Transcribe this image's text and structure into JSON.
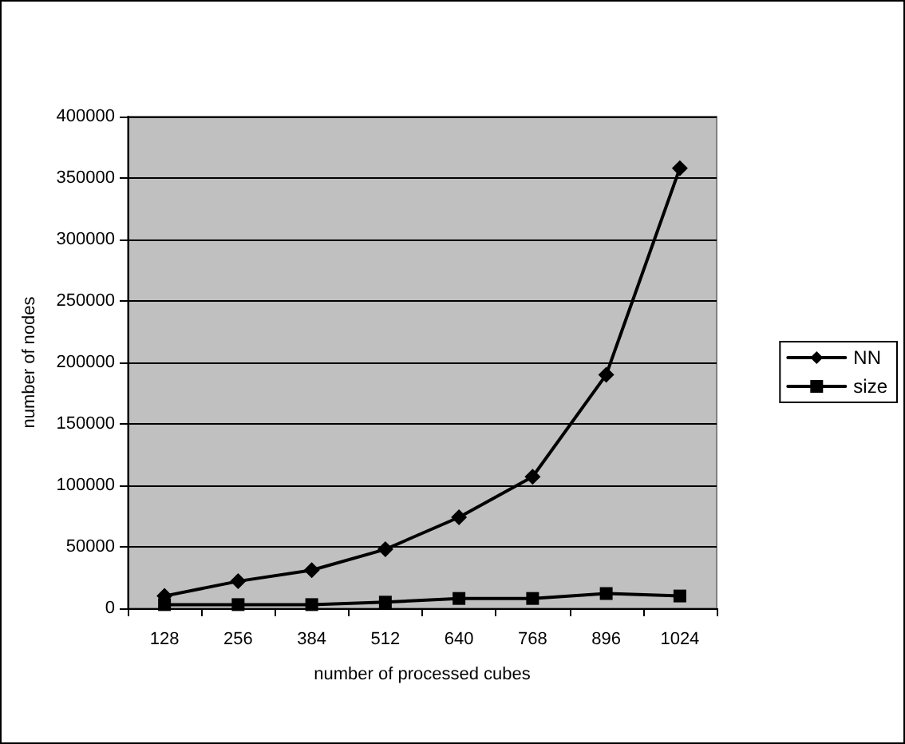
{
  "chart_data": {
    "type": "line",
    "xlabel": "number of processed cubes",
    "ylabel": "number of nodes",
    "categories": [
      "128",
      "256",
      "384",
      "512",
      "640",
      "768",
      "896",
      "1024"
    ],
    "series": [
      {
        "name": "NN",
        "color": "#000000",
        "marker": "diamond",
        "values": [
          10000,
          22000,
          31000,
          48000,
          74000,
          107000,
          190000,
          358000
        ]
      },
      {
        "name": "size",
        "color": "#000000",
        "marker": "square",
        "values": [
          3000,
          3000,
          3000,
          5000,
          8000,
          8000,
          12000,
          10000
        ]
      }
    ],
    "ylim": [
      0,
      400000
    ],
    "yticks": [
      0,
      50000,
      100000,
      150000,
      200000,
      250000,
      300000,
      350000,
      400000
    ],
    "grid": "y",
    "legend": "right",
    "line_style": "solid"
  }
}
